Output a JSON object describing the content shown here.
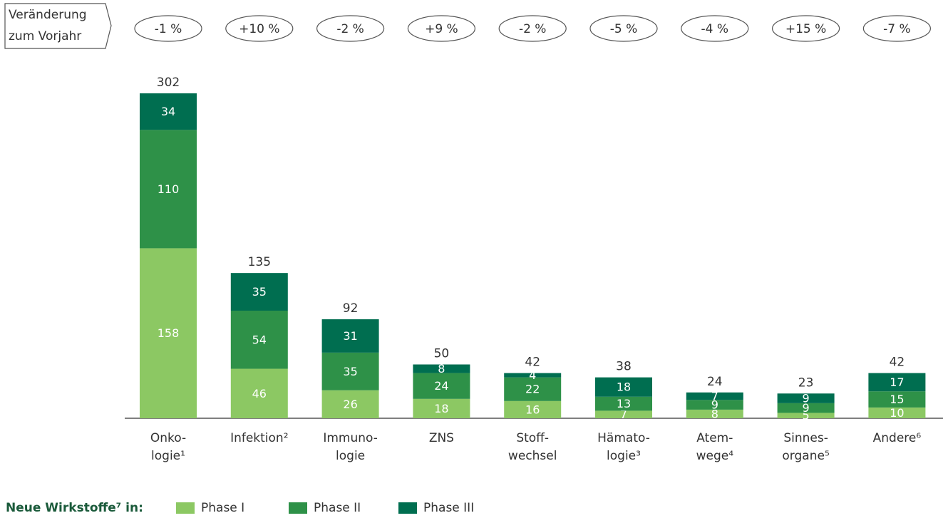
{
  "chart_data": {
    "type": "stacked-bar",
    "change_label": [
      "Veränderung",
      "zum Vorjahr"
    ],
    "changes": [
      "-1 %",
      "+10 %",
      "-2 %",
      "+9 %",
      "-2 %",
      "-5 %",
      "-4 %",
      "+15 %",
      "-7 %"
    ],
    "categories": [
      [
        "Onko-",
        "logie¹"
      ],
      [
        "Infektion²"
      ],
      [
        "Immuno-",
        "logie"
      ],
      [
        "ZNS"
      ],
      [
        "Stoff-",
        "wechsel"
      ],
      [
        "Hämato-",
        "logie³"
      ],
      [
        "Atem-",
        "wege⁴"
      ],
      [
        "Sinnes-",
        "organe⁵"
      ],
      [
        "Andere⁶"
      ]
    ],
    "totals": [
      302,
      135,
      92,
      50,
      42,
      38,
      24,
      23,
      42
    ],
    "legend_title": "Neue Wirkstoffe⁷ in:",
    "series": [
      {
        "name": "Phase I",
        "color": "#8cc863",
        "values": [
          158,
          46,
          26,
          18,
          16,
          7,
          8,
          5,
          10
        ]
      },
      {
        "name": "Phase II",
        "color": "#2e9148",
        "values": [
          110,
          54,
          35,
          24,
          22,
          13,
          9,
          9,
          15
        ]
      },
      {
        "name": "Phase III",
        "color": "#006e50",
        "values": [
          34,
          35,
          31,
          8,
          4,
          18,
          7,
          9,
          17
        ]
      }
    ]
  }
}
